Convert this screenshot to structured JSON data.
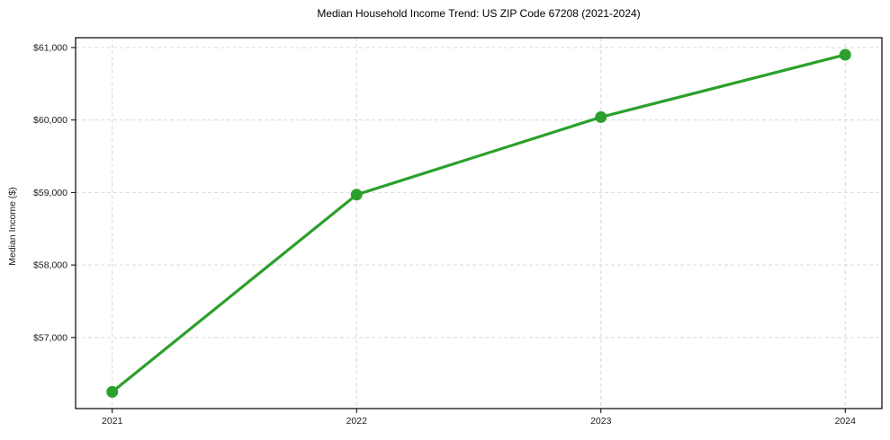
{
  "chart_data": {
    "type": "line",
    "title": "Median Household Income Trend: US ZIP Code 67208 (2021-2024)",
    "xlabel": "",
    "ylabel": "Median Income ($)",
    "categories": [
      2021,
      2022,
      2023,
      2024
    ],
    "xtick_labels": [
      "2021",
      "2022",
      "2023",
      "2024"
    ],
    "values": [
      56250,
      58970,
      60040,
      60900
    ],
    "yticks": [
      57000,
      58000,
      59000,
      60000,
      61000
    ],
    "ytick_labels": [
      "$57,000",
      "$58,000",
      "$59,000",
      "$60,000",
      "$61,000"
    ],
    "xlim": [
      2020.85,
      2024.15
    ],
    "ylim": [
      56020,
      61135
    ],
    "grid": true,
    "grid_style": "dashed",
    "legend_position": "none",
    "colors": {
      "line": "#2ca02c",
      "marker": "#2ca02c",
      "grid": "#d9d9d9",
      "spine": "#000000",
      "text": "#1a1a1a",
      "background": "#ffffff"
    }
  }
}
